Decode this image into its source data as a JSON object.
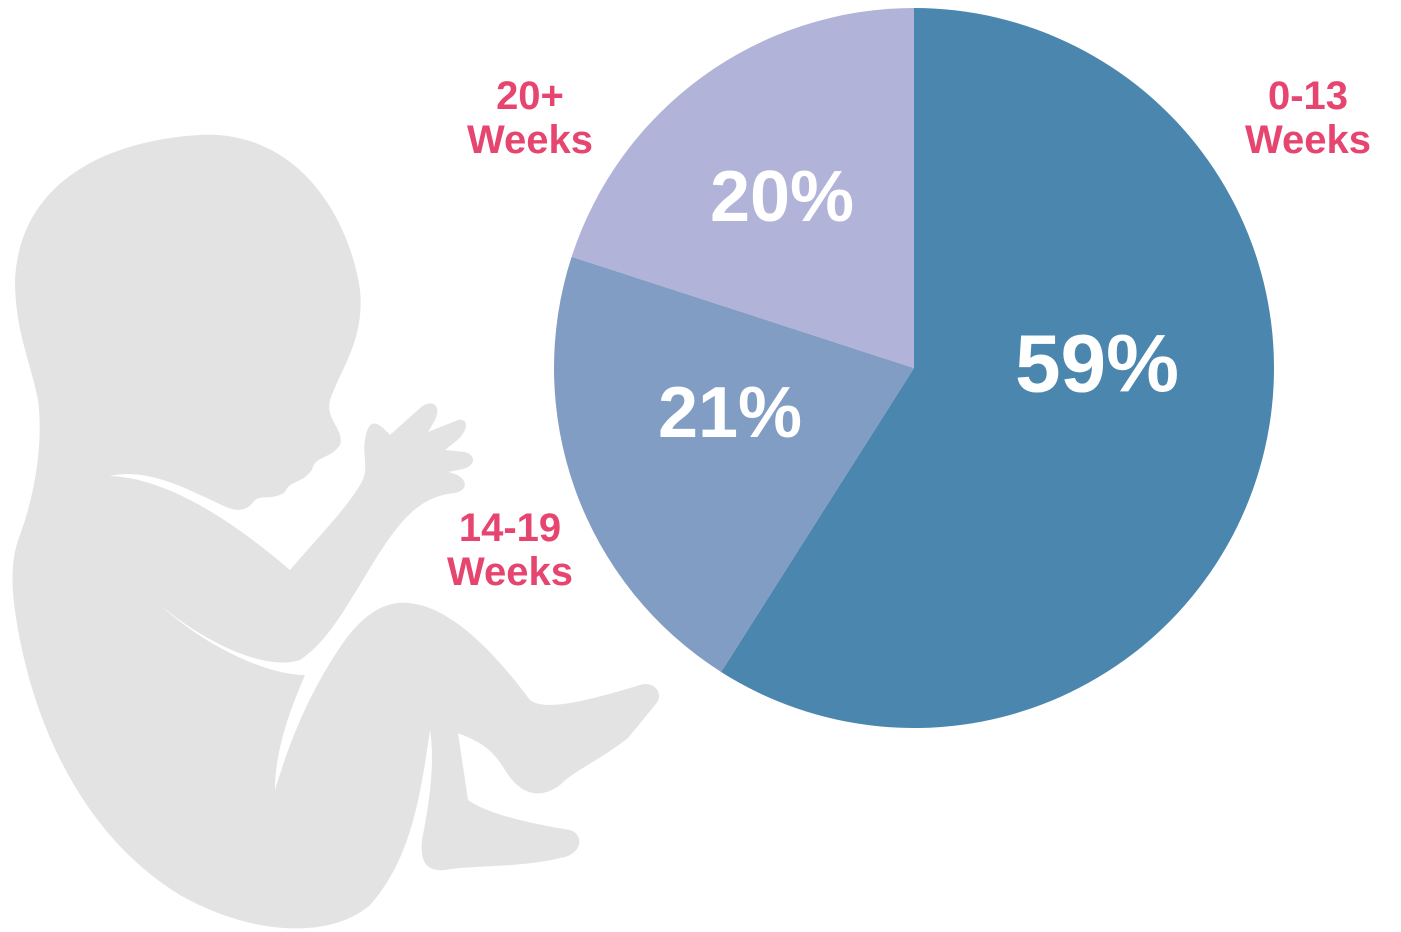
{
  "chart_data": {
    "type": "pie",
    "categories": [
      "0-13 Weeks",
      "14-19 Weeks",
      "20+ Weeks"
    ],
    "values": [
      59,
      21,
      20
    ],
    "value_labels": [
      "59%",
      "21%",
      "20%"
    ],
    "colors": [
      "#4a86ad",
      "#829dc3",
      "#b2b3d8"
    ]
  }
}
